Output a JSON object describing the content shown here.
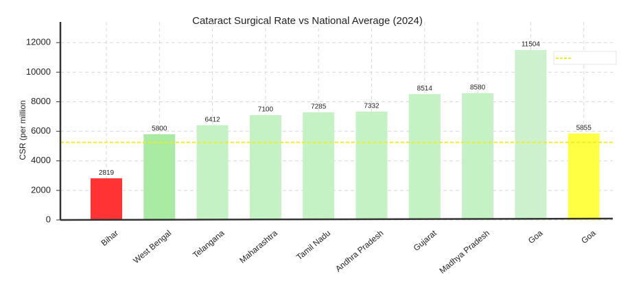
{
  "chart_data": {
    "type": "bar",
    "title": "Cataract Surgical Rate vs National Average (2024)",
    "y_label": "CSR (per million",
    "categories": [
      "Bihar",
      "West Bengal",
      "Telangana",
      "Maharashtra",
      "Tamil Nadu",
      "Andhra Pradesh",
      "Gujarat",
      "Madhya Pradesh",
      "Goa",
      "Goa"
    ],
    "values": [
      2819,
      5800,
      6412,
      7100,
      7285,
      7332,
      8514,
      8580,
      11504,
      5855
    ],
    "colors": [
      "#ff3333",
      "#a9eba3",
      "#c4f2c4",
      "#c4f2c4",
      "#c4f2c4",
      "#c4f2c4",
      "#c4f2c4",
      "#c4f2c4",
      "#cdf0cd",
      "#ffff44"
    ],
    "reference_line": {
      "value": 5250,
      "color": "#eeee22"
    },
    "ylim": [
      0,
      13400
    ],
    "yticks": [
      0,
      2000,
      4000,
      6000,
      8000,
      10000,
      12000
    ],
    "grid": true
  }
}
